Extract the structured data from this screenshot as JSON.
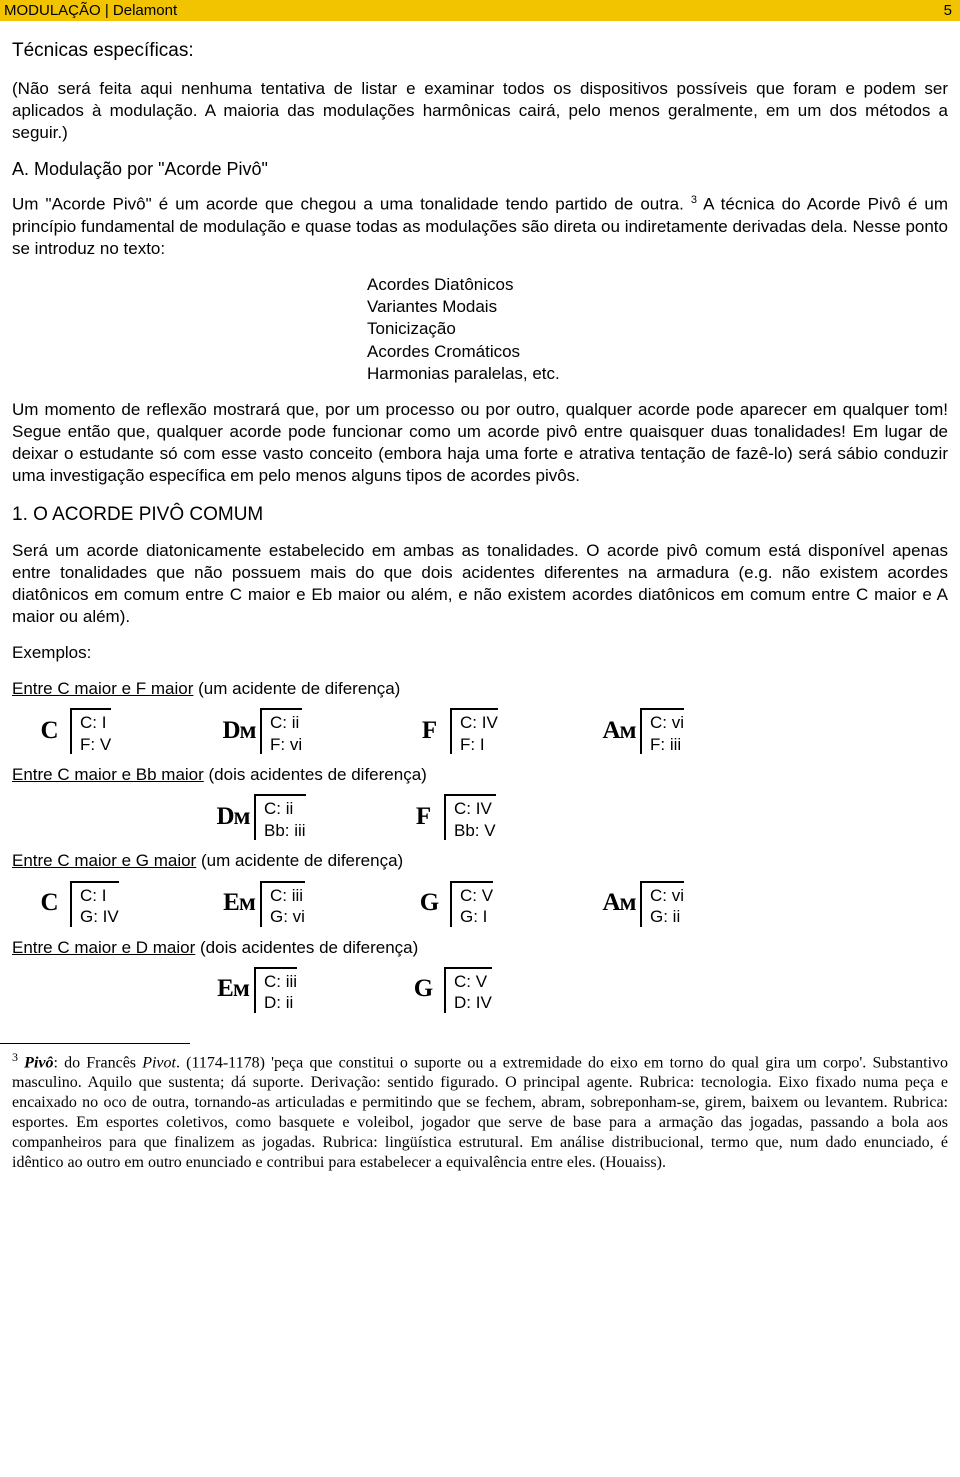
{
  "header": {
    "title": "MODULAÇÃO | Delamont",
    "page": "5"
  },
  "section_title": "Técnicas específicas:",
  "intro": "(Não será feita aqui nenhuma tentativa de listar e examinar todos os dispositivos possíveis que foram e podem ser aplicados à modulação. A maioria das modulações harmônicas cairá, pelo menos geralmente, em um dos métodos a seguir.)",
  "sub_a": "A. Modulação por \"Acorde Pivô\"",
  "para_a_1a": "Um \"Acorde Pivô\" é um acorde que chegou a uma tonalidade tendo partido de outra. ",
  "para_a_1_sup": "3",
  "para_a_1b": " A técnica do Acorde Pivô é um princípio fundamental de modulação e quase todas as modulações são direta ou indiretamente derivadas dela. Nesse ponto se introduz no texto:",
  "list": {
    "i0": "Acordes Diatônicos",
    "i1": "Variantes Modais",
    "i2": "Tonicização",
    "i3": "Acordes Cromáticos",
    "i4": "Harmonias paralelas, etc."
  },
  "para_reflex": "Um momento de reflexão mostrará que, por um processo ou por outro, qualquer acorde pode aparecer em qualquer tom! Segue então que, qualquer acorde pode funcionar como um acorde pivô entre quaisquer duas tonalidades! Em lugar de deixar o estudante só com esse vasto conceito (embora haja uma forte e atrativa tentação de fazê-lo) será sábio conduzir uma investigação específica em pelo menos alguns tipos de acordes pivôs.",
  "h2_pivot": "1. O ACORDE PIVÔ COMUM",
  "para_pivot": "Será um acorde diatonicamente estabelecido em ambas as tonalidades. O acorde pivô comum está disponível apenas entre tonalidades que não possuem mais do que dois acidentes diferentes na armadura (e.g. não existem acordes diatônicos em comum entre C maior e Eb maior ou além, e não existem acordes diatônicos em comum entre C maior e A maior ou além).",
  "examples_label": "Exemplos:",
  "ex1": {
    "title_under": "Entre C maior e F maior",
    "title_rest": " (um acidente de diferença)"
  },
  "ex2": {
    "title_under": "Entre C maior e Bb maior",
    "title_rest": " (dois acidentes de diferença)"
  },
  "ex3": {
    "title_under": "Entre C maior e G maior",
    "title_rest": " (um acidente de diferença)"
  },
  "ex4": {
    "title_under": "Entre C maior e D maior",
    "title_rest": " (dois acidentes de diferença)"
  },
  "row1": {
    "c0": {
      "sym": "C",
      "l1": "C: I",
      "l2": "F: V"
    },
    "c1": {
      "sym": "Dᴍ",
      "l1": "C: ii",
      "l2": "F: vi"
    },
    "c2": {
      "sym": "F",
      "l1": "C: IV",
      "l2": "F: I"
    },
    "c3": {
      "sym": "Aᴍ",
      "l1": "C: vi",
      "l2": "F: iii"
    }
  },
  "row2": {
    "c0": {
      "sym": "Dᴍ",
      "l1": "C: ii",
      "l2": "Bb: iii"
    },
    "c1": {
      "sym": "F",
      "l1": "C: IV",
      "l2": "Bb: V"
    }
  },
  "row3": {
    "c0": {
      "sym": "C",
      "l1": "C: I",
      "l2": "G: IV"
    },
    "c1": {
      "sym": "Eᴍ",
      "l1": "C: iii",
      "l2": "G: vi"
    },
    "c2": {
      "sym": "G",
      "l1": "C: V",
      "l2": "G: I"
    },
    "c3": {
      "sym": "Aᴍ",
      "l1": "C: vi",
      "l2": "G: ii"
    }
  },
  "row4": {
    "c0": {
      "sym": "Eᴍ",
      "l1": "C: iii",
      "l2": "D: ii"
    },
    "c1": {
      "sym": "G",
      "l1": "C: V",
      "l2": "D: IV"
    }
  },
  "footnote": {
    "num": "3",
    "term": "Pivô",
    "rest_a": ": do Francês ",
    "it": "Pivot",
    "rest_b": ". (1174-1178) 'peça que constitui o suporte ou a extremidade do eixo em torno do qual gira um corpo'. Substantivo masculino. Aquilo que sustenta; dá suporte. Derivação: sentido figurado. O principal agente. Rubrica: tecnologia. Eixo fixado numa peça e encaixado no oco de outra, tornando-as articuladas e permitindo que se fechem, abram, sobreponham-se, girem, baixem ou levantem. Rubrica: esportes. Em esportes coletivos, como basquete e voleibol, jogador que serve de base para a armação das jogadas, passando a bola aos companheiros para que finalizem as jogadas. Rubrica: lingüística estrutural. Em análise distribucional, termo que, num dado enunciado, é idêntico ao outro em outro enunciado e contribui para estabelecer a equivalência entre eles. (Houaiss)."
  }
}
